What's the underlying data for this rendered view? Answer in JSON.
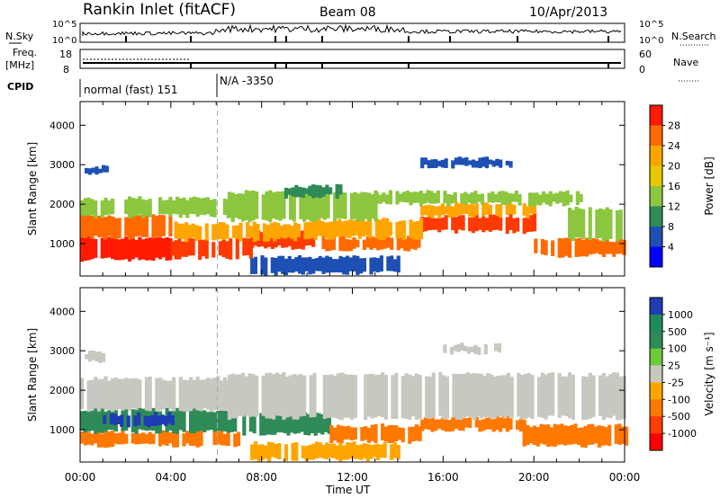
{
  "header": {
    "station": "Rankin Inlet (fitACF)",
    "beam": "Beam 08",
    "date": "10/Apr/2013"
  },
  "status_panels": {
    "nsky_label": "N.Sky",
    "nsky_ticks": [
      "10^5",
      "10^0"
    ],
    "nsearch_label": "N.Search",
    "nsearch_ticks": [
      "10^5",
      "10^0"
    ],
    "freq_label_1": "Freq.",
    "freq_label_2": "[MHz]",
    "freq_ticks": [
      "18",
      "8"
    ],
    "nave_label": "Nave",
    "nave_ticks": [
      "60",
      "0"
    ],
    "cpid_label": "CPID",
    "cpid_entries": [
      "normal (fast) 151",
      "N/A -3350"
    ]
  },
  "chart_data": [
    {
      "type": "heatmap",
      "name": "power-panel",
      "ylabel": "Slant Range [km]",
      "yticks": [
        "4000",
        "3000",
        "2000",
        "1000"
      ],
      "ylim": [
        180,
        4600
      ],
      "xlabel": "Time UT",
      "xticks": [
        "00:00",
        "04:00",
        "08:00",
        "12:00",
        "16:00",
        "20:00",
        "00:00"
      ],
      "xlim_hours": [
        0,
        24
      ],
      "colorbar": {
        "label": "Power [dB]",
        "ticks": [
          "28",
          "24",
          "20",
          "16",
          "12",
          "8",
          "4"
        ],
        "colors": [
          "#ff1a00",
          "#ff6a00",
          "#ffa500",
          "#e8c800",
          "#8dc63f",
          "#2e8b57",
          "#1e50b4",
          "#0000ff"
        ]
      },
      "bands": [
        {
          "t0": 0.0,
          "t1": 4.0,
          "r0": 600,
          "r1": 1150,
          "color": "#ff1a00"
        },
        {
          "t0": 4.0,
          "t1": 7.5,
          "r0": 650,
          "r1": 1100,
          "color": "#ff3a00"
        },
        {
          "t0": 7.5,
          "t1": 10.5,
          "r0": 900,
          "r1": 1300,
          "color": "#ff3a00"
        },
        {
          "t0": 10.5,
          "t1": 15.0,
          "r0": 850,
          "r1": 1150,
          "color": "#ff6a00"
        },
        {
          "t0": 15.0,
          "t1": 20.0,
          "r0": 1300,
          "r1": 1700,
          "color": "#ff3a00"
        },
        {
          "t0": 20.0,
          "t1": 24.0,
          "r0": 700,
          "r1": 1100,
          "color": "#ff6a00"
        },
        {
          "t0": 0.0,
          "t1": 4.0,
          "r0": 1150,
          "r1": 1700,
          "color": "#ff6a00"
        },
        {
          "t0": 4.0,
          "t1": 10.0,
          "r0": 1100,
          "r1": 1500,
          "color": "#ffa500"
        },
        {
          "t0": 10.0,
          "t1": 15.0,
          "r0": 1150,
          "r1": 1600,
          "color": "#ffa500"
        },
        {
          "t0": 15.0,
          "t1": 20.0,
          "r0": 1700,
          "r1": 2000,
          "color": "#ffa500"
        },
        {
          "t0": 0.0,
          "t1": 6.5,
          "r0": 1700,
          "r1": 2150,
          "color": "#8dc63f"
        },
        {
          "t0": 6.5,
          "t1": 13.0,
          "r0": 1600,
          "r1": 2300,
          "color": "#8dc63f"
        },
        {
          "t0": 13.0,
          "t1": 22.0,
          "r0": 2000,
          "r1": 2300,
          "color": "#8dc63f"
        },
        {
          "t0": 9.0,
          "t1": 11.5,
          "r0": 2200,
          "r1": 2450,
          "color": "#2e8b57"
        },
        {
          "t0": 21.5,
          "t1": 24.0,
          "r0": 1100,
          "r1": 1900,
          "color": "#8dc63f"
        },
        {
          "t0": 15.0,
          "t1": 19.0,
          "r0": 2950,
          "r1": 3150,
          "color": "#1e50b4"
        },
        {
          "t0": 0.2,
          "t1": 1.2,
          "r0": 2750,
          "r1": 2950,
          "color": "#1e50b4"
        },
        {
          "t0": 7.5,
          "t1": 14.0,
          "r0": 250,
          "r1": 650,
          "color": "#1e50b4"
        }
      ]
    },
    {
      "type": "heatmap",
      "name": "velocity-panel",
      "ylabel": "Slant Range [km]",
      "yticks": [
        "4000",
        "3000",
        "2000",
        "1000"
      ],
      "ylim": [
        180,
        4600
      ],
      "xlabel": "Time UT",
      "xticks": [
        "00:00",
        "04:00",
        "08:00",
        "12:00",
        "16:00",
        "20:00",
        "00:00"
      ],
      "xlim_hours": [
        0,
        24
      ],
      "colorbar": {
        "label": "Velocity [m s⁻¹]",
        "ticks": [
          "1000",
          "500",
          "100",
          "25",
          "-25",
          "-100",
          "-500",
          "-1000"
        ],
        "colors": [
          "#1e3cb4",
          "#1e8c5a",
          "#2e8b57",
          "#6ec83c",
          "#c8c8c0",
          "#ffa500",
          "#ff7800",
          "#ff3c00",
          "#ff0000"
        ]
      },
      "bands": [
        {
          "t0": 0.0,
          "t1": 7.0,
          "r0": 600,
          "r1": 950,
          "color": "#ff7800"
        },
        {
          "t0": 0.0,
          "t1": 7.0,
          "r0": 950,
          "r1": 1500,
          "color": "#2e8b57"
        },
        {
          "t0": 1.0,
          "t1": 4.0,
          "r0": 1100,
          "r1": 1400,
          "color": "#1e3cb4"
        },
        {
          "t0": 7.0,
          "t1": 11.0,
          "r0": 900,
          "r1": 1400,
          "color": "#2e8b57"
        },
        {
          "t0": 11.0,
          "t1": 15.0,
          "r0": 700,
          "r1": 1100,
          "color": "#ff7800"
        },
        {
          "t0": 15.0,
          "t1": 19.5,
          "r0": 1000,
          "r1": 1300,
          "color": "#ff7800"
        },
        {
          "t0": 19.5,
          "t1": 24.0,
          "r0": 600,
          "r1": 1100,
          "color": "#ff7800"
        },
        {
          "t0": 6.5,
          "t1": 24.0,
          "r0": 1300,
          "r1": 2400,
          "color": "#c8c8c0"
        },
        {
          "t0": 0.0,
          "t1": 6.5,
          "r0": 1500,
          "r1": 2300,
          "color": "#c8c8c0"
        },
        {
          "t0": 16.0,
          "t1": 18.5,
          "r0": 2950,
          "r1": 3150,
          "color": "#c8c8c0"
        },
        {
          "t0": 0.2,
          "t1": 1.0,
          "r0": 2750,
          "r1": 2950,
          "color": "#c8c8c0"
        },
        {
          "t0": 7.5,
          "t1": 14.0,
          "r0": 250,
          "r1": 650,
          "color": "#ffa500"
        }
      ]
    }
  ]
}
